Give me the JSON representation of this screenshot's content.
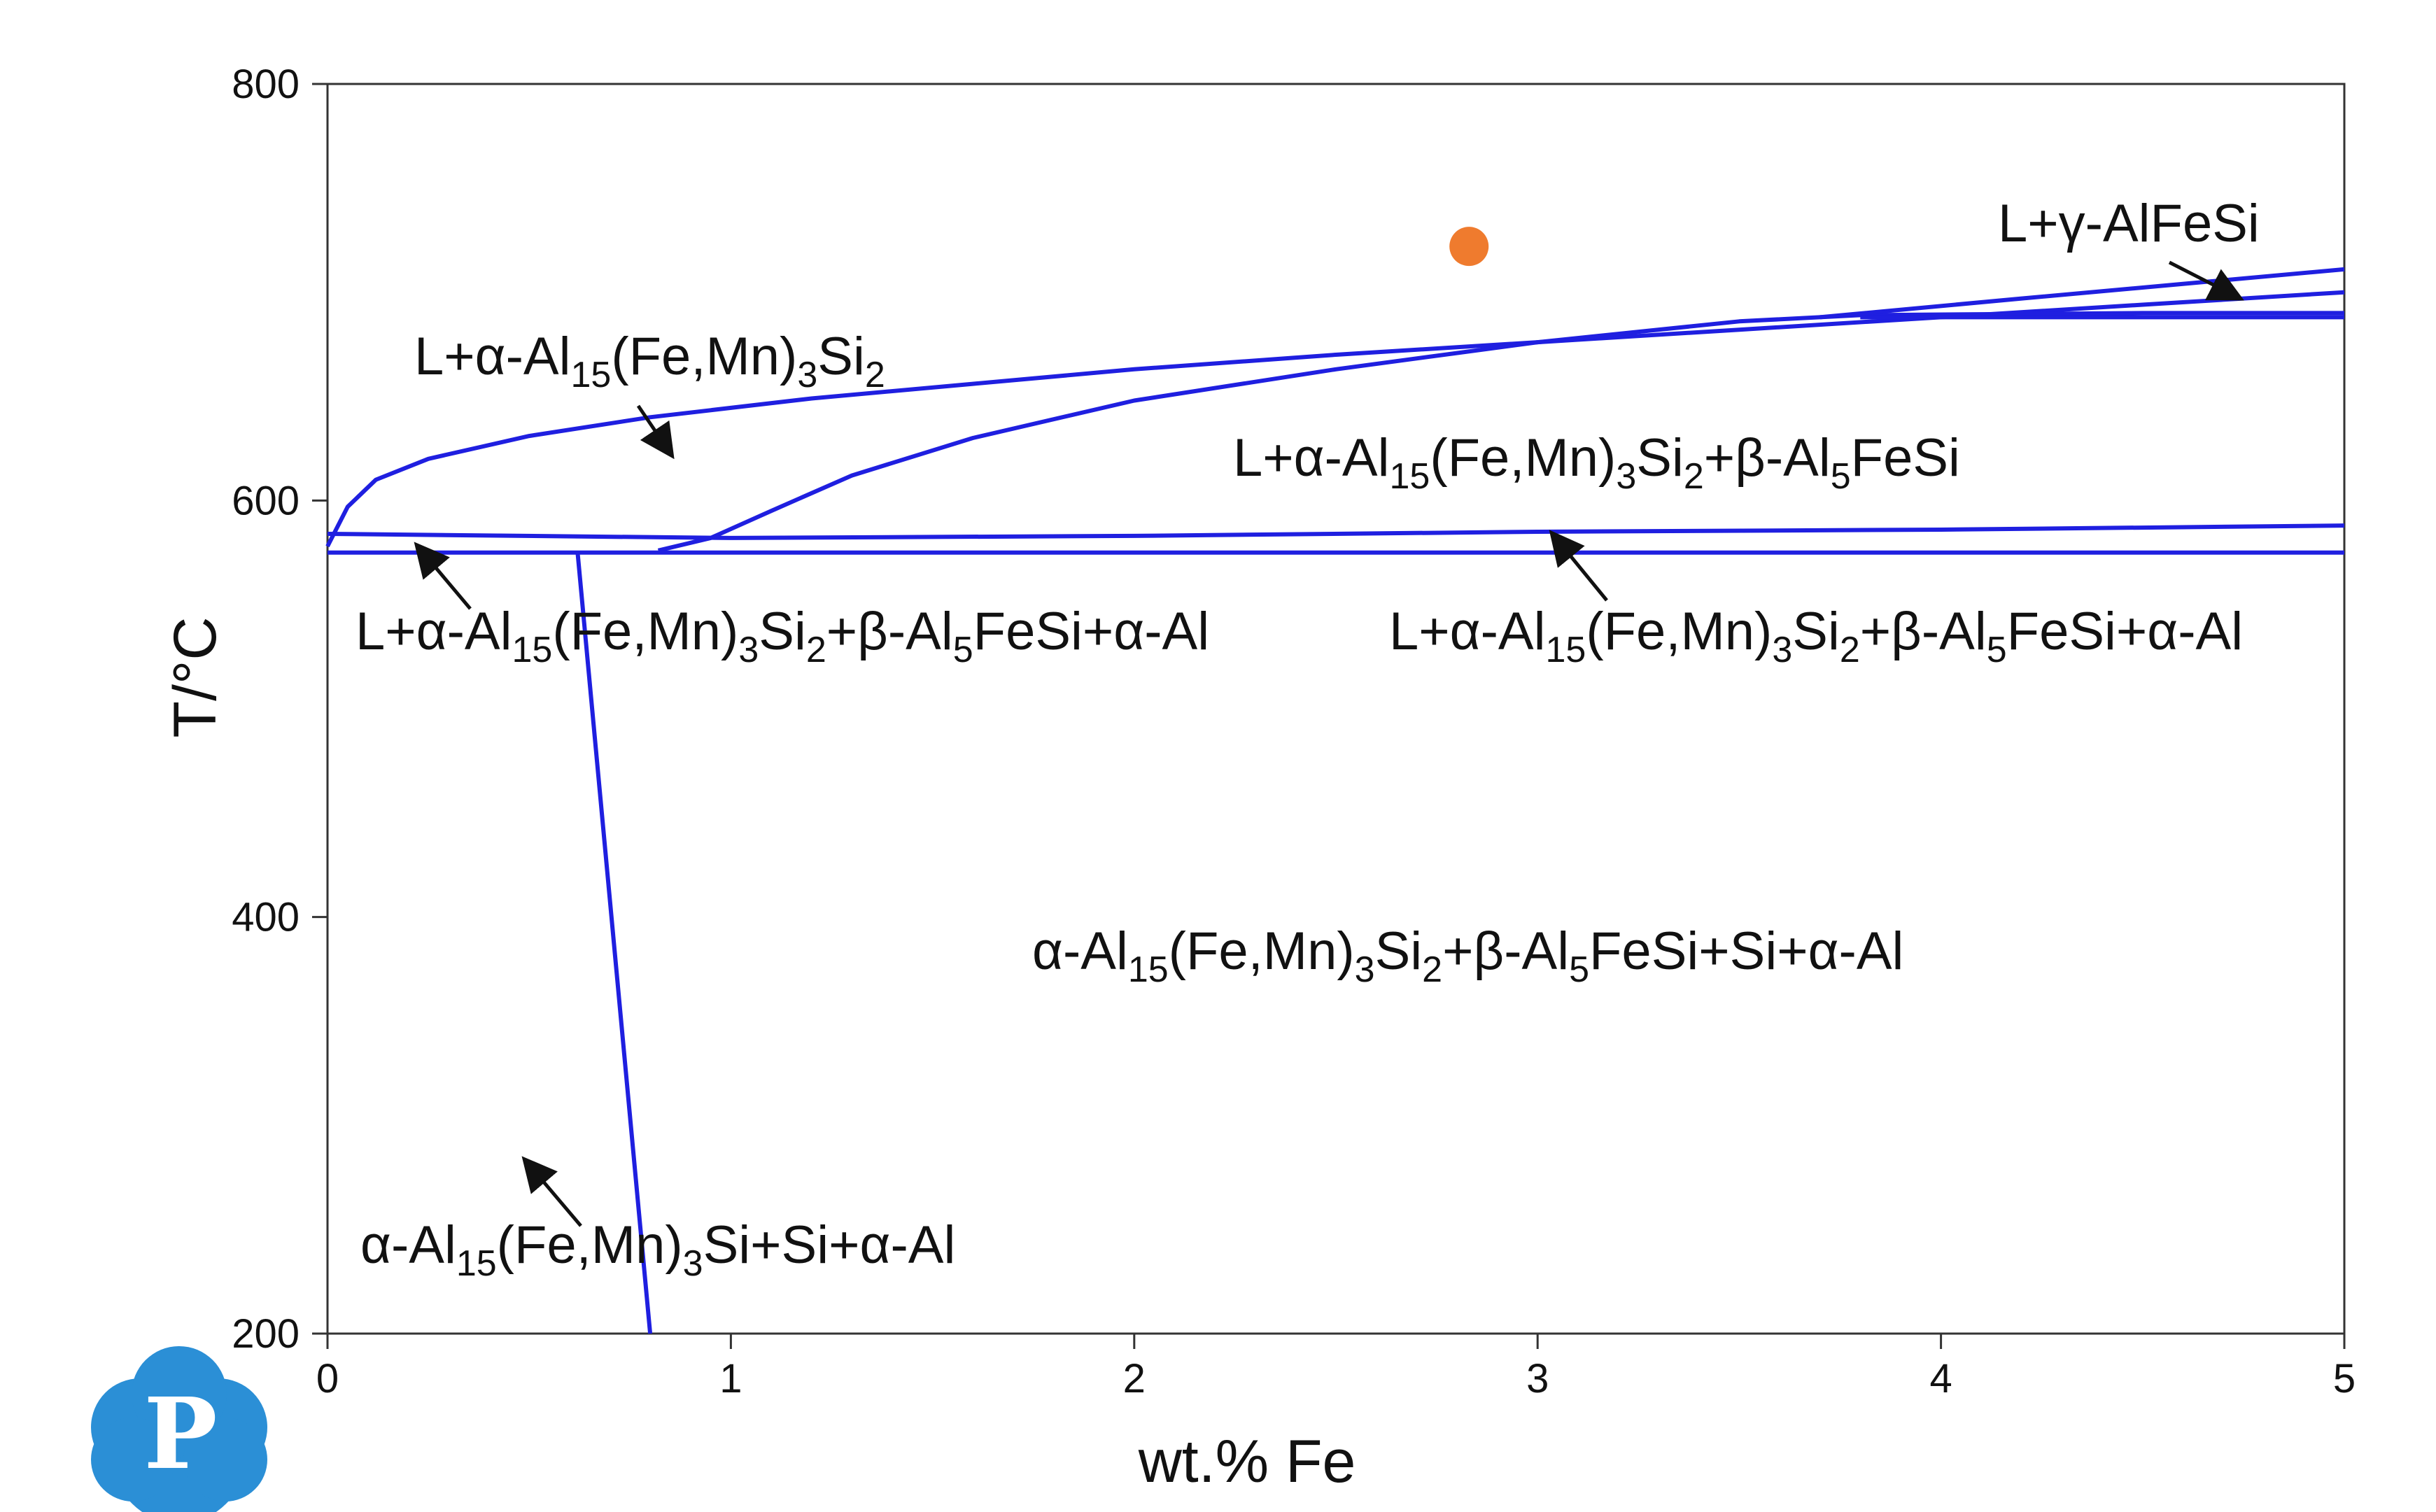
{
  "chart_data": {
    "type": "line",
    "title": "",
    "xlabel": "wt.% Fe",
    "ylabel": "T/°C",
    "xlim": [
      0,
      5
    ],
    "ylim": [
      200,
      800
    ],
    "xticks": [
      "0",
      "1",
      "2",
      "3",
      "4",
      "5"
    ],
    "yticks": [
      "200",
      "400",
      "600",
      "800"
    ],
    "grid": false,
    "line_color": "#1f1fe0",
    "marker_color": "#ef7b2e",
    "series": [
      {
        "x": [
          0,
          0.05,
          0.12,
          0.25,
          0.5,
          0.8,
          1.2,
          1.6,
          2.0,
          2.5,
          3.0,
          3.5,
          4.0,
          4.5,
          5.0
        ],
        "y": [
          578,
          597,
          610,
          620,
          631,
          640,
          649,
          656,
          663,
          670,
          676,
          682,
          688,
          694,
          700
        ]
      },
      {
        "x": [
          0.82,
          0.95,
          1.1,
          1.3,
          1.6,
          2.0,
          2.5,
          3.0,
          3.5,
          3.8,
          4.5,
          5.0
        ],
        "y": [
          576,
          582,
          595,
          612,
          630,
          648,
          663,
          676,
          686,
          689,
          690,
          690
        ]
      },
      {
        "x": [
          3.7,
          4.2,
          4.6,
          5.0
        ],
        "y": [
          688,
          697,
          704,
          711
        ]
      },
      {
        "x": [
          3.8,
          5.0
        ],
        "y": [
          688,
          688
        ]
      },
      {
        "x": [
          0,
          1.0,
          2.0,
          3.0,
          4.0,
          5.0
        ],
        "y": [
          584,
          582,
          583,
          585,
          586,
          588
        ]
      },
      {
        "x": [
          0,
          5.0
        ],
        "y": [
          575,
          575
        ]
      },
      {
        "x": [
          0.62,
          0.8
        ],
        "y": [
          575,
          200
        ]
      }
    ],
    "marker": {
      "x": 2.83,
      "y": 722
    },
    "annotations": [
      {
        "pre": "L+α-Al",
        "s1": "15",
        "m1": "(Fe,Mn)",
        "s2": "3",
        "m2": "Si",
        "s3": "2",
        "m3": "",
        "s4": "",
        "post": ""
      },
      {
        "pre": "L+γ-AlFeSi",
        "s1": "",
        "m1": "",
        "s2": "",
        "m2": "",
        "s3": "",
        "m3": "",
        "s4": "",
        "post": ""
      },
      {
        "pre": "L+α-Al",
        "s1": "15",
        "m1": "(Fe,Mn)",
        "s2": "3",
        "m2": "Si",
        "s3": "2",
        "m3": "+β-Al",
        "s4": "5",
        "post": "FeSi"
      },
      {
        "pre": "L+α-Al",
        "s1": "15",
        "m1": "(Fe,Mn)",
        "s2": "3",
        "m2": "Si",
        "s3": "2",
        "m3": "+β-Al",
        "s4": "5",
        "post": "FeSi+α-Al"
      },
      {
        "pre": "L+α-Al",
        "s1": "15",
        "m1": "(Fe,Mn)",
        "s2": "3",
        "m2": "Si",
        "s3": "2",
        "m3": "+β-Al",
        "s4": "5",
        "post": "FeSi+α-Al"
      },
      {
        "pre": "α-Al",
        "s1": "15",
        "m1": "(Fe,Mn)",
        "s2": "3",
        "m2": "Si",
        "s3": "2",
        "m3": "+β-Al",
        "s4": "5",
        "post": "FeSi+Si+α-Al"
      },
      {
        "pre": "α-Al",
        "s1": "15",
        "m1": "(Fe,Mn)",
        "s2": "3",
        "m2": "Si+Si+α-Al",
        "s3": "",
        "m3": "",
        "s4": "",
        "post": ""
      }
    ]
  },
  "logo": {
    "letter": "P",
    "color": "#2b8fd6",
    "icon": "pandat-logo-icon"
  }
}
